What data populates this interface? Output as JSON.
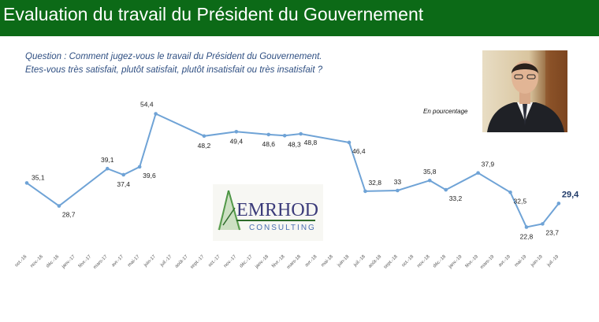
{
  "header": {
    "title": "Evaluation du travail du Président du Gouvernement",
    "background": "#0c6a17"
  },
  "question": {
    "line1": "Question : Comment jugez-vous le travail du Président du Gouvernement.",
    "line2": "Etes-vous très satisfait, plutôt satisfait, plutôt insatisfait ou très insatisfait ?"
  },
  "unit_note": "En pourcentage",
  "logo": {
    "name": "EMRHOD",
    "subtitle": "CONSULTING"
  },
  "chart_data": {
    "type": "line",
    "series_color": "#6fa3d6",
    "categories": [
      "oct.-16",
      "nov.-16",
      "déc.-16",
      "janv.-17",
      "févr.-17",
      "mars-17",
      "avr.-17",
      "mai-17",
      "juin-17",
      "juil.-17",
      "août-17",
      "sept.-17",
      "oct.-17",
      "nov.-17",
      "déc.-17",
      "janv.-18",
      "févr.-18",
      "mars-18",
      "avr.-18",
      "mai-18",
      "juin-18",
      "juil.-18",
      "août-18",
      "sept.-18",
      "oct.-18",
      "nov.-18",
      "déc.-18",
      "janv.-19",
      "févr.-19",
      "mars-19",
      "avr.-19",
      "mai-19",
      "juin-19",
      "juil.-19"
    ],
    "points": [
      {
        "x": "oct.-16",
        "y": 35.1,
        "label": "35,1",
        "labelPos": "right"
      },
      {
        "x": "déc.-16",
        "y": 28.7,
        "label": "28,7",
        "labelPos": "below-right"
      },
      {
        "x": "mars-17",
        "y": 39.1,
        "label": "39,1",
        "labelPos": "above"
      },
      {
        "x": "avr.-17",
        "y": 37.4,
        "label": "37,4",
        "labelPos": "below"
      },
      {
        "x": "mai-17",
        "y": 39.6,
        "label": "39,6",
        "labelPos": "below-right"
      },
      {
        "x": "juin-17",
        "y": 54.4,
        "label": "54,4",
        "labelPos": "above-left"
      },
      {
        "x": "sept.-17",
        "y": 48.2,
        "label": "48,2",
        "labelPos": "below"
      },
      {
        "x": "nov.-17",
        "y": 49.4,
        "label": "49,4",
        "labelPos": "below"
      },
      {
        "x": "janv.-18",
        "y": 48.6,
        "label": "48,6",
        "labelPos": "below"
      },
      {
        "x": "févr.-18",
        "y": 48.3,
        "label": "48,3",
        "labelPos": "below-right"
      },
      {
        "x": "mars-18",
        "y": 48.8,
        "label": "48,8",
        "labelPos": "below-right"
      },
      {
        "x": "juin-18",
        "y": 46.4,
        "label": "46,4",
        "labelPos": "below-right"
      },
      {
        "x": "juil.-18",
        "y": 32.8,
        "label": "32,8",
        "labelPos": "above-right"
      },
      {
        "x": "sept.-18",
        "y": 33.0,
        "label": "33",
        "labelPos": "above"
      },
      {
        "x": "nov.-18",
        "y": 35.8,
        "label": "35,8",
        "labelPos": "above"
      },
      {
        "x": "déc.-18",
        "y": 33.2,
        "label": "33,2",
        "labelPos": "below-right"
      },
      {
        "x": "févr.-19",
        "y": 37.9,
        "label": "37,9",
        "labelPos": "above-right"
      },
      {
        "x": "avr.-19",
        "y": 32.5,
        "label": "32,5",
        "labelPos": "below-right"
      },
      {
        "x": "mai-19",
        "y": 22.8,
        "label": "22,8",
        "labelPos": "below"
      },
      {
        "x": "juin-19",
        "y": 23.7,
        "label": "23,7",
        "labelPos": "below-right"
      },
      {
        "x": "juil.-19",
        "y": 29.4,
        "label": "29,4",
        "labelPos": "above-right",
        "highlight": true
      }
    ],
    "ylim": [
      15,
      60
    ],
    "grid": false,
    "legend": "none",
    "title": "",
    "xlabel": "",
    "ylabel": ""
  }
}
